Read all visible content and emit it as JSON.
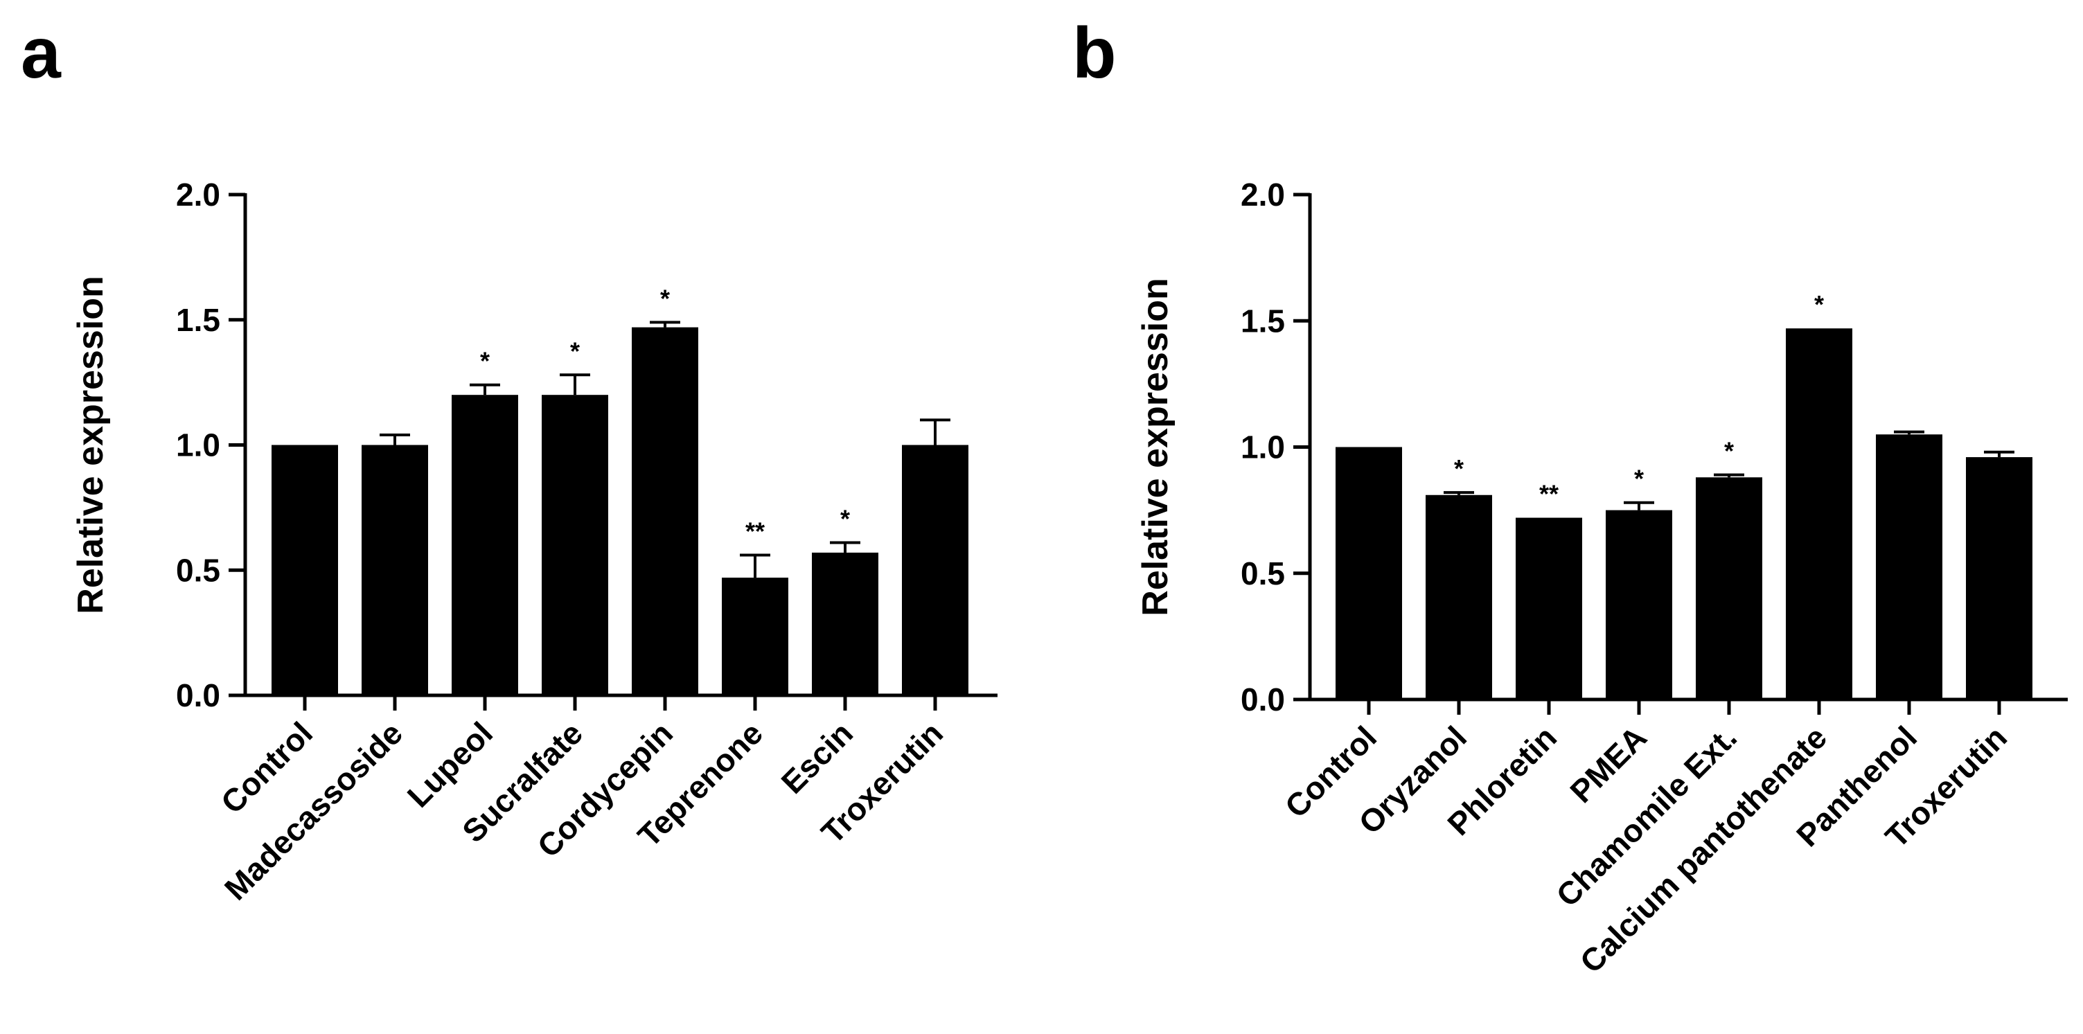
{
  "chart_data": [
    {
      "type": "bar",
      "panel": "a",
      "ylabel": "Relative expression",
      "ylim": [
        0,
        2.0
      ],
      "yticks": [
        0.0,
        0.5,
        1.0,
        1.5,
        2.0
      ],
      "ytick_labels": [
        "0.0",
        "0.5",
        "1.0",
        "1.5",
        "2.0"
      ],
      "categories": [
        "Control",
        "Madecassoside",
        "Lupeol",
        "Sucralfate",
        "Cordycepin",
        "Teprenone",
        "Escin",
        "Troxerutin"
      ],
      "values": [
        1.0,
        1.0,
        1.2,
        1.2,
        1.47,
        0.47,
        0.57,
        1.0
      ],
      "errors": [
        0.0,
        0.04,
        0.04,
        0.08,
        0.02,
        0.09,
        0.04,
        0.1
      ],
      "significance": [
        "",
        "",
        "*",
        "*",
        "*",
        "**",
        "*",
        ""
      ]
    },
    {
      "type": "bar",
      "panel": "b",
      "ylabel": "Relative expression",
      "ylim": [
        0,
        2.0
      ],
      "yticks": [
        0.0,
        0.5,
        1.0,
        1.5,
        2.0
      ],
      "ytick_labels": [
        "0.0",
        "0.5",
        "1.0",
        "1.5",
        "2.0"
      ],
      "categories": [
        "Control",
        "Oryzanol",
        "Phloretin",
        "PMEA",
        "Chamomile Ext.",
        "Calcium pantothenate",
        "Panthenol",
        "Troxerutin"
      ],
      "values": [
        1.0,
        0.81,
        0.72,
        0.75,
        0.88,
        1.47,
        1.05,
        0.96
      ],
      "errors": [
        0.0,
        0.01,
        0.0,
        0.03,
        0.01,
        0.0,
        0.01,
        0.02
      ],
      "significance": [
        "",
        "*",
        "**",
        "*",
        "*",
        "*",
        "",
        ""
      ]
    }
  ]
}
